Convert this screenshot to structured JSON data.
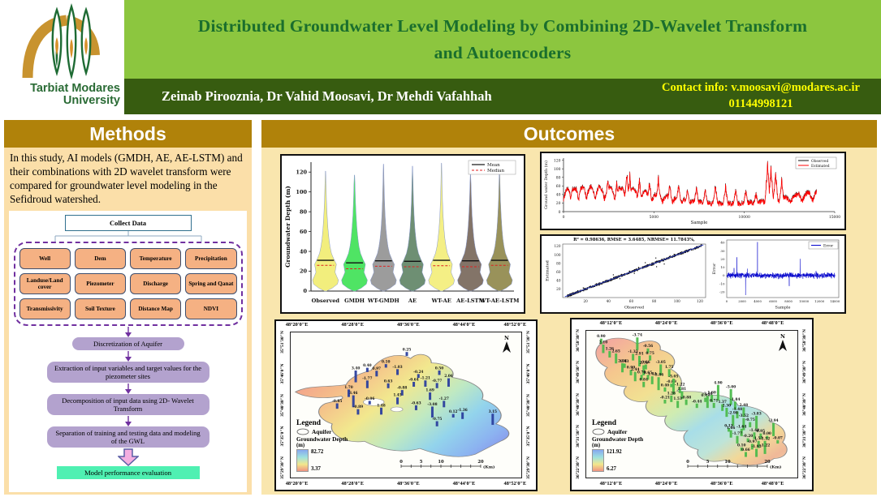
{
  "header": {
    "title_line1": "Distributed Groundwater Level Modeling by Combining 2D-Wavelet Transform",
    "title_line2": "and Autoencoders",
    "authors": "Zeinab Pirooznia, Dr Vahid Moosavi, Dr Mehdi Vafahhah",
    "contact_label": "Contact info: v.moosavi@modares.ac.ir",
    "contact_phone": "01144998121",
    "logo": {
      "org_line1": "Tarbiat Modares",
      "org_line2": "University"
    },
    "colors": {
      "title_bg": "#8CC63F",
      "authors_bg": "#375C10",
      "contact_text": "#FFFF00",
      "panel_header_bg": "#B0820A"
    }
  },
  "methods": {
    "heading": "Methods",
    "paragraph": "In this study, AI models (GMDH, AE, AE-LSTM) and their combinations with 2D wavelet transform were compared for groundwater level modeling in the Sefidroud watershed.",
    "flowchart": {
      "top_box": "Collect Data",
      "data_boxes": [
        "Well",
        "Dem",
        "Temperature",
        "Precipitation",
        "Landuse/Land cover",
        "Piezometer",
        "Discharge",
        "Spring and Qanat",
        "Transmissivity",
        "Soil Texture",
        "Distance Map",
        "NDVI"
      ],
      "steps": [
        "Discretization of Aquifer",
        "Extraction of input variables and target values for the piezometer sites",
        "Decomposition of  input data using 2D- Wavelet Transform",
        "Separation of training and testing data and modeling of the GWL"
      ],
      "final_box": "Model performance evaluation"
    }
  },
  "outcomes": {
    "heading": "Outcomes"
  },
  "chart_data": [
    {
      "type": "violin",
      "ylabel": "Groundwater Depth (m)",
      "ylim": [
        0,
        130
      ],
      "yticks": [
        0,
        20,
        40,
        60,
        80,
        100,
        120
      ],
      "categories": [
        "Observed",
        "GMDH",
        "WT-GMDH",
        "AE",
        "WT-AE",
        "AE-LSTM",
        "WT-AE-LSTM"
      ],
      "colors": [
        "#F2EE7D",
        "#4FE464",
        "#9C9C9C",
        "#6E8F73",
        "#F4EF85",
        "#837468",
        "#99925A"
      ],
      "max_depth": [
        121,
        117,
        128,
        126,
        129,
        118,
        123
      ],
      "mean": [
        31,
        28.5,
        30.5,
        30,
        31,
        30.5,
        31
      ],
      "median": [
        26,
        22.5,
        25,
        24.5,
        25.5,
        24.5,
        26
      ],
      "legend": [
        "Mean",
        "Median"
      ],
      "legend_position": "top-right"
    },
    {
      "type": "line",
      "subtype": "timeseries",
      "xlabel": "Sample",
      "ylabel": "Ground water Depth (m)",
      "xlim": [
        0,
        15000
      ],
      "ylim": [
        0,
        125
      ],
      "xticks": [
        0,
        5000,
        10000,
        15000
      ],
      "yticks": [
        0,
        20,
        40,
        60,
        80,
        100,
        120
      ],
      "series": [
        {
          "name": "Observed",
          "color": "#111111"
        },
        {
          "name": "Estimated",
          "color": "#FF0000"
        }
      ],
      "description": "Dense noisy groundwater depth series, estimated (red) overlapping observed (black); repeated peaks 60-100 m, largest peak ~120 m near sample 12000"
    },
    {
      "type": "scatter",
      "subtype": "scatter",
      "title": "R² = 0.98636, RMSE = 3.6485, NRMSE= 11.7843%,",
      "xlabel": "Observed",
      "ylabel": "Estimated",
      "xlim": [
        0,
        125
      ],
      "ylim": [
        0,
        125
      ],
      "xticks": [
        20,
        40,
        60,
        80,
        100,
        120
      ],
      "yticks": [
        20,
        40,
        60,
        80,
        100,
        120
      ],
      "point_color": "#111111",
      "fit_line_color": "#2233BB",
      "description": "Observed vs estimated groundwater depth, tight 1:1 diagonal"
    },
    {
      "type": "line",
      "subtype": "error",
      "legend": [
        "Error"
      ],
      "color": "#0000CC",
      "xlabel": "Sample",
      "ylabel": "Error",
      "xlim": [
        0,
        14500
      ],
      "ylim": [
        -27,
        43
      ],
      "xticks": [
        0,
        2000,
        4000,
        6000,
        8000,
        10000,
        12000,
        14000
      ],
      "yticks": [
        -20,
        -10,
        0,
        10,
        20,
        30,
        40
      ],
      "description": "Residual error band around 0 (about ±7 m), positive spike ~40 near sample 4000, negative spike ~-24 near sample 2500"
    },
    {
      "type": "map",
      "legend_title": "Legend",
      "aquifer_label": "Aquifer",
      "depth_label": "Groundwater Depth",
      "unit": "(m)",
      "max": "82.72",
      "min": "3.37",
      "x_labels": [
        "48°20'0\"E",
        "48°28'0\"E",
        "48°36'0\"E",
        "48°44'0\"E",
        "48°52'0\"E"
      ],
      "y_labels": [
        "35°51'30\"N",
        "35°46'0\"N",
        "35°40'30\"N",
        "35°35'0\"N",
        "35°29'30\"N"
      ],
      "scale_ticks": [
        "0",
        "5",
        "10",
        "20"
      ],
      "scale_unit": "(Km)",
      "north_label": "N",
      "bar_color": "#2B3F9E",
      "stations": [
        [
          33,
          27,
          0.4
        ],
        [
          41,
          24,
          0.1
        ],
        [
          50,
          16,
          0.25
        ],
        [
          37,
          30,
          0.97
        ],
        [
          46,
          29,
          -1.03
        ],
        [
          28,
          34,
          3.4
        ],
        [
          55,
          31,
          -0.24
        ],
        [
          64,
          29,
          0.5
        ],
        [
          33,
          38,
          -1.77
        ],
        [
          42,
          38,
          0.63
        ],
        [
          53,
          37,
          -0.64
        ],
        [
          58,
          37,
          -1.21
        ],
        [
          63,
          38,
          -0.77
        ],
        [
          68,
          37,
          2.06
        ],
        [
          25,
          44,
          1.7
        ],
        [
          48,
          43,
          -0.88
        ],
        [
          60,
          46,
          1.69
        ],
        [
          20,
          52,
          -0.85
        ],
        [
          27,
          51,
          3.46
        ],
        [
          34,
          49,
          -0.06
        ],
        [
          46,
          49,
          1.45
        ],
        [
          54,
          53,
          -0.63
        ],
        [
          66,
          51,
          -1.27
        ],
        [
          61,
          58,
          -3.08
        ],
        [
          70,
          58,
          0.12
        ],
        [
          74,
          59,
          -1.36
        ],
        [
          29,
          56,
          -0.89
        ],
        [
          39,
          56,
          1.48
        ],
        [
          63,
          64,
          -0.75
        ],
        [
          87,
          63,
          3.15
        ]
      ]
    },
    {
      "type": "map",
      "legend_title": "Legend",
      "aquifer_label": "Aquifer",
      "depth_label": "Groundwater Depth",
      "unit": "(m)",
      "max": "121.92",
      "min": "6.27",
      "x_labels": [
        "48°12'0\"E",
        "48°24'0\"E",
        "48°36'0\"E",
        "48°48'0\"E"
      ],
      "y_labels": [
        "36°58'30\"N",
        "36°49'30\"N",
        "36°40'30\"N",
        "36°31'30\"N",
        "36°22'30\"N"
      ],
      "scale_ticks": [
        "0",
        "5",
        "10",
        "20"
      ],
      "scale_unit": "(Km)",
      "north_label": "N",
      "bar_color": "#4CBB4C",
      "stations": [
        [
          7,
          9,
          0.9
        ],
        [
          8,
          15,
          2.1
        ],
        [
          11,
          18,
          1.26
        ],
        [
          14,
          22,
          2.65
        ],
        [
          24,
          13,
          -3.74
        ],
        [
          29,
          15,
          -0.56
        ],
        [
          22,
          20,
          -1.33
        ],
        [
          25,
          24,
          2.91
        ],
        [
          30,
          20,
          0.75
        ],
        [
          18,
          25,
          0.43
        ],
        [
          17,
          28,
          2.36
        ],
        [
          28,
          26,
          0.66
        ],
        [
          21,
          30,
          0.9
        ],
        [
          27,
          30,
          2.7
        ],
        [
          23,
          34,
          2.44
        ],
        [
          26,
          33,
          0.7
        ],
        [
          29,
          33,
          0.65
        ],
        [
          27,
          38,
          0.84
        ],
        [
          31,
          36,
          1.84
        ],
        [
          35,
          30,
          -3.05
        ],
        [
          39,
          31,
          1.75
        ],
        [
          34,
          40,
          -3.86
        ],
        [
          37,
          41,
          0.4
        ],
        [
          40,
          38,
          -0.09
        ],
        [
          41,
          43,
          -5.05
        ],
        [
          44,
          42,
          -1.22
        ],
        [
          45,
          46,
          1.81
        ],
        [
          37,
          49,
          -0.21
        ],
        [
          40,
          48,
          1.28
        ],
        [
          43,
          52,
          1.53
        ],
        [
          47,
          50,
          -0.88
        ],
        [
          52,
          52,
          -0.44
        ],
        [
          56,
          48,
          0.43
        ],
        [
          59,
          48,
          1.6
        ],
        [
          62,
          47,
          4.9
        ],
        [
          57,
          52,
          -3.48
        ],
        [
          60,
          52,
          0.71
        ],
        [
          64,
          54,
          1.37
        ],
        [
          68,
          50,
          -5.0
        ],
        [
          70,
          53,
          -1.84
        ],
        [
          66,
          58,
          2.3
        ],
        [
          71,
          59,
          -1.48
        ],
        [
          74,
          58,
          2.48
        ],
        [
          69,
          64,
          -2.98
        ],
        [
          67,
          68,
          0.13
        ],
        [
          74,
          67,
          -3.52
        ],
        [
          77,
          65,
          -0.75
        ],
        [
          80,
          66,
          -3.83
        ],
        [
          68,
          72,
          1.66
        ],
        [
          73,
          71,
          -1.64
        ],
        [
          71,
          76,
          -1.77
        ],
        [
          76,
          75,
          -0.2
        ],
        [
          79,
          73,
          -1.4
        ],
        [
          82,
          73,
          0.95
        ],
        [
          85,
          73,
          -0.0
        ],
        [
          88,
          71,
          -3.94
        ],
        [
          90,
          76,
          -0.07
        ],
        [
          73,
          81,
          0.1
        ],
        [
          78,
          80,
          -0.97
        ],
        [
          81,
          79,
          1.57
        ],
        [
          84,
          79,
          -1.52
        ],
        [
          75,
          85,
          0.66
        ],
        [
          80,
          85,
          -1.95
        ],
        [
          84,
          83,
          -1.22
        ]
      ]
    }
  ]
}
